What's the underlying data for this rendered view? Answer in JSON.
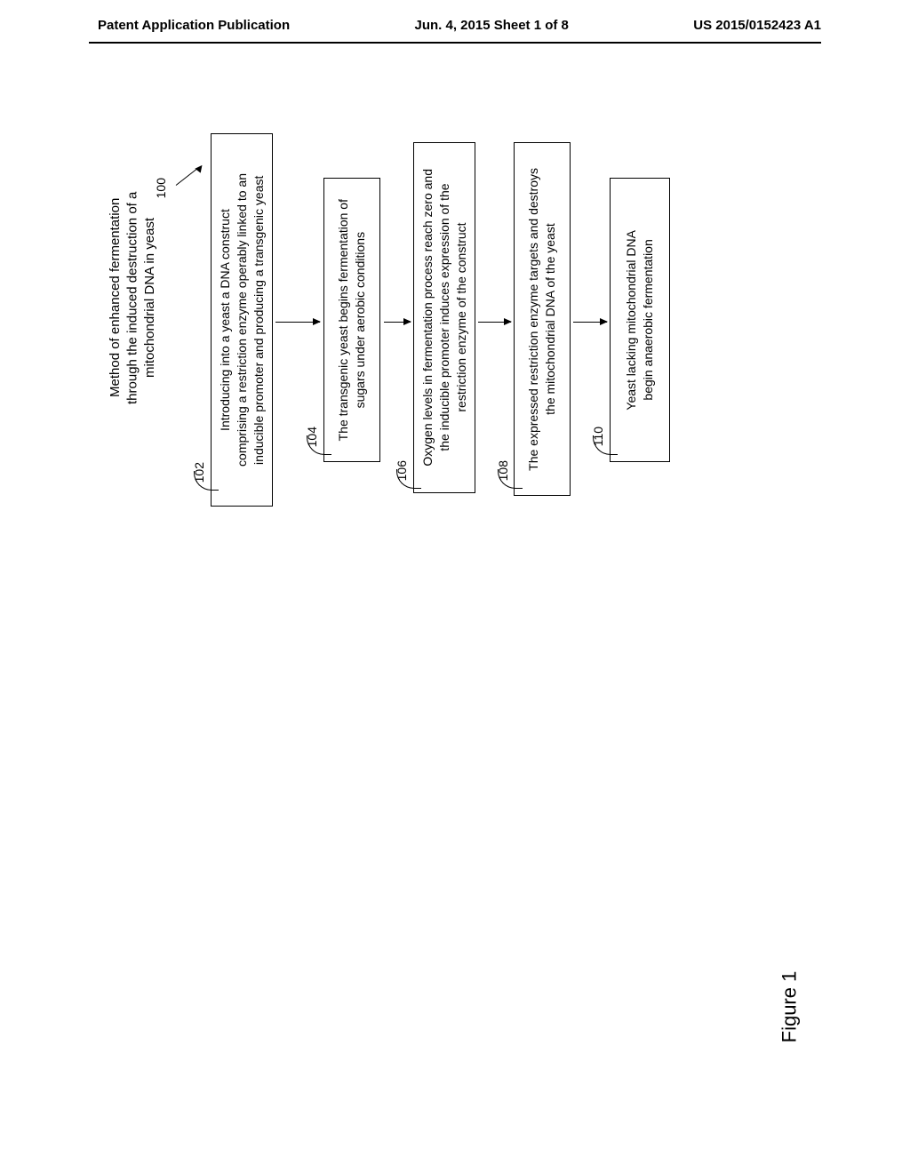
{
  "header": {
    "left": "Patent Application Publication",
    "center": "Jun. 4, 2015  Sheet 1 of 8",
    "right": "US 2015/0152423 A1"
  },
  "figure": {
    "label": "Figure 1",
    "title": "Method of enhanced fermentation\nthrough the induced destruction of a\nmitochondrial DNA in yeast",
    "title_number": "100",
    "boxes": [
      {
        "id": "102",
        "text": "Introducing into a yeast a DNA construct\ncomprising a restriction enzyme operably linked to an\ninducible promoter and producing a transgenic yeast"
      },
      {
        "id": "104",
        "text": "The transgenic yeast begins fermentation of\nsugars under aerobic conditions"
      },
      {
        "id": "106",
        "text": "Oxygen levels in fermentation process reach zero and\nthe inducible promoter induces expression of the\nrestriction enzyme of the construct"
      },
      {
        "id": "108",
        "text": "The expressed restriction enzyme targets and destroys\nthe  mitochondrial DNA of the yeast"
      },
      {
        "id": "110",
        "text": "Yeast lacking mitochondrial DNA\nbegin anaerobic fermentation"
      }
    ],
    "styling": {
      "box_border_color": "#000000",
      "background_color": "#ffffff",
      "text_color": "#000000",
      "font_size_box": 14,
      "font_size_label": 14,
      "font_size_figure": 22,
      "arrow_color": "#000000"
    }
  }
}
